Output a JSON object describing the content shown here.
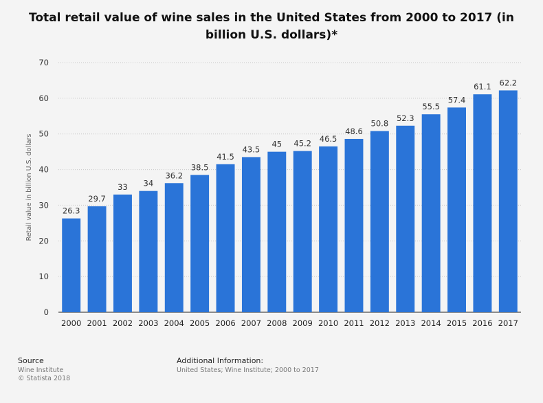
{
  "chart_data": {
    "type": "bar",
    "title": "Total retail value of wine sales in the United States from 2000 to 2017 (in billion U.S. dollars)*",
    "ylabel": "Retail value in billion U.S. dollars",
    "xlabel": "",
    "categories": [
      "2000",
      "2001",
      "2002",
      "2003",
      "2004",
      "2005",
      "2006",
      "2007",
      "2008",
      "2009",
      "2010",
      "2011",
      "2012",
      "2013",
      "2014",
      "2015",
      "2016",
      "2017"
    ],
    "values": [
      26.3,
      29.7,
      33,
      34,
      36.2,
      38.5,
      41.5,
      43.5,
      45,
      45.2,
      46.5,
      48.6,
      50.8,
      52.3,
      55.5,
      57.4,
      61.1,
      62.2
    ],
    "value_labels": [
      "26.3",
      "29.7",
      "33",
      "34",
      "36.2",
      "38.5",
      "41.5",
      "43.5",
      "45",
      "45.2",
      "46.5",
      "48.6",
      "50.8",
      "52.3",
      "55.5",
      "57.4",
      "61.1",
      "62.2"
    ],
    "ylim": [
      0,
      70
    ],
    "yticks": [
      0,
      10,
      20,
      30,
      40,
      50,
      60,
      70
    ],
    "grid": true,
    "bar_color": "#2a74d8"
  },
  "footer": {
    "source_label": "Source",
    "source_lines": [
      "Wine Institute",
      "© Statista 2018"
    ],
    "info_label": "Additional Information:",
    "info_text": "United States; Wine Institute; 2000 to 2017"
  }
}
